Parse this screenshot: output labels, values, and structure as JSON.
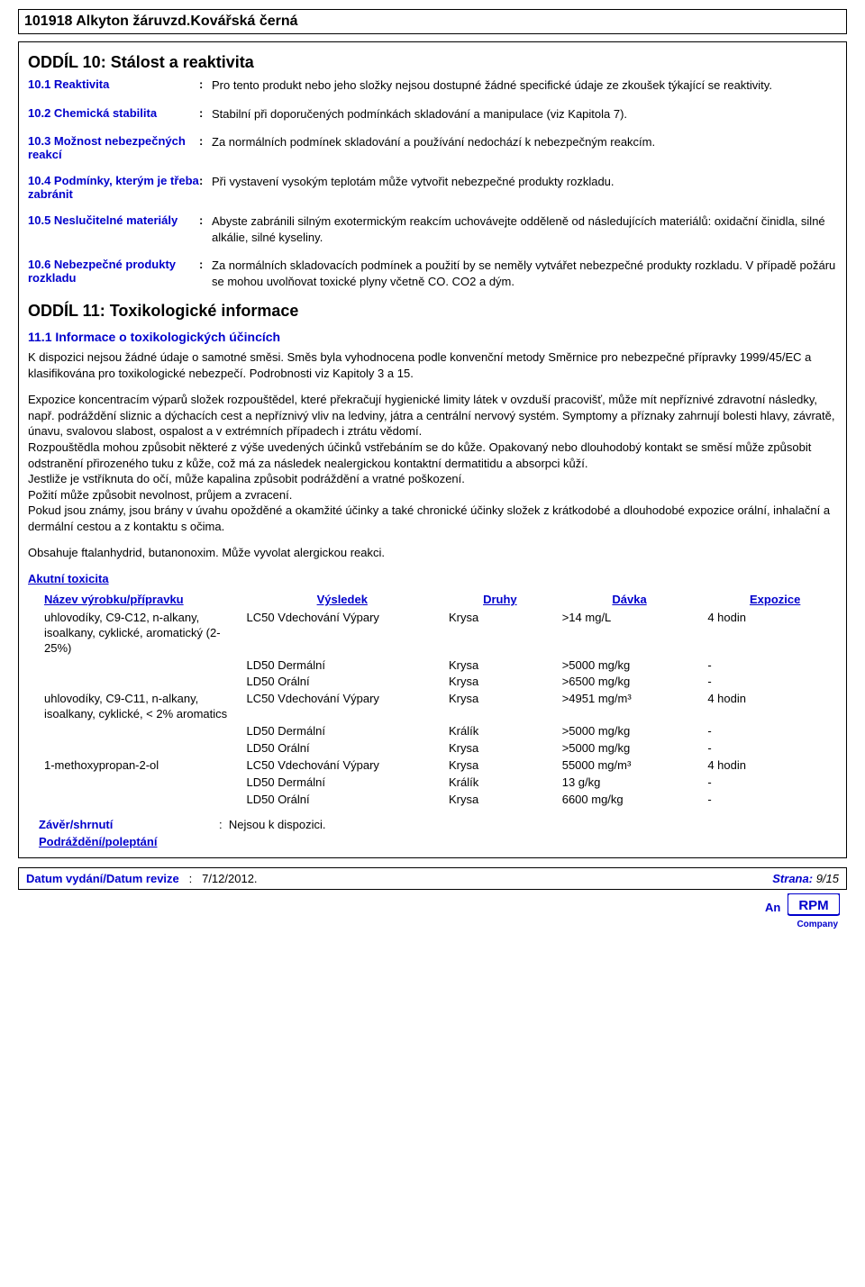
{
  "colors": {
    "blue": "#0000cc",
    "black": "#000000",
    "white": "#ffffff"
  },
  "header": {
    "title": "101918 Alkyton žáruvzd.Kovářská černá"
  },
  "section10": {
    "heading": "ODDÍL 10: Stálost a reaktivita",
    "items": [
      {
        "label": "10.1 Reaktivita",
        "value": "Pro tento produkt nebo jeho složky nejsou dostupné žádné specifické údaje ze zkoušek týkající se reaktivity."
      },
      {
        "label": "10.2 Chemická stabilita",
        "value": "Stabilní při doporučených podmínkách skladování a manipulace (viz Kapitola 7)."
      },
      {
        "label": "10.3 Možnost nebezpečných reakcí",
        "value": "Za normálních podmínek skladování a používání nedochází k nebezpečným reakcím."
      },
      {
        "label": "10.4 Podmínky, kterým je třeba zabránit",
        "value": "Při vystavení vysokým teplotám může vytvořit nebezpečné produkty rozkladu."
      },
      {
        "label": "10.5 Neslučitelné materiály",
        "value": "Abyste zabránili silným exotermickým reakcím uchovávejte odděleně od následujících materiálů: oxidační činidla, silné alkálie, silné kyseliny."
      },
      {
        "label": "10.6 Nebezpečné produkty rozkladu",
        "value": "Za normálních skladovacích podmínek a použití by se neměly vytvářet nebezpečné produkty rozkladu. V případě požáru se mohou uvolňovat toxické plyny včetně CO. CO2 a dým."
      }
    ]
  },
  "section11": {
    "heading": "ODDÍL 11: Toxikologické informace",
    "sub1": "11.1 Informace o toxikologických účincích",
    "para1": "K dispozici nejsou žádné údaje o samotné směsi. Směs byla vyhodnocena podle konvenční metody Směrnice pro nebezpečné přípravky 1999/45/EC a klasifikována pro toxikologické nebezpečí. Podrobnosti viz Kapitoly 3 a 15.",
    "para2": "Expozice koncentracím výparů složek rozpouštědel, které překračují hygienické limity látek v ovzduší pracovišť, může mít nepříznivé zdravotní následky, např. podráždění sliznic a dýchacích cest a nepříznivý vliv na ledviny, játra a centrální nervový systém. Symptomy a příznaky zahrnují bolesti hlavy, závratě, únavu, svalovou slabost, ospalost a v extrémních případech i ztrátu vědomí.\nRozpouštědla mohou způsobit některé z výše uvedených účinků vstřebáním se do kůže. Opakovaný nebo dlouhodobý kontakt se směsí může způsobit odstranění přirozeného tuku z kůže, což má za následek nealergickou kontaktní dermatitidu a absorpci kůží.\nJestliže je vstříknuta do očí, může kapalina způsobit podráždění a vratné poškození.\nPožití může způsobit nevolnost, průjem a zvracení.\nPokud jsou známy, jsou brány v úvahu opožděné a okamžité účinky a také chronické účinky složek z krátkodobé a dlouhodobé expozice orální, inhalační a dermální cestou a z kontaktu s očima.",
    "para3": "Obsahuje ftalanhydrid, butanonoxim. Může vyvolat alergickou reakci.",
    "acute_toxicity_label": "Akutní toxicita",
    "table_headers": [
      "Název výrobku/přípravku",
      "Výsledek",
      "Druhy",
      "Dávka",
      "Expozice"
    ],
    "table_rows": [
      {
        "name": "uhlovodíky, C9-C12, n-alkany, isoalkany, cyklické, aromatický (2-25%)",
        "result": "LC50 Vdechování Výpary",
        "species": "Krysa",
        "dose": ">14 mg/L",
        "exposure": "4 hodin"
      },
      {
        "name": "",
        "result": "LD50 Dermální",
        "species": "Krysa",
        "dose": ">5000 mg/kg",
        "exposure": "-"
      },
      {
        "name": "",
        "result": "LD50 Orální",
        "species": "Krysa",
        "dose": ">6500 mg/kg",
        "exposure": "-"
      },
      {
        "name": "uhlovodíky, C9-C11, n-alkany, isoalkany, cyklické, < 2% aromatics",
        "result": "LC50 Vdechování Výpary",
        "species": "Krysa",
        "dose": ">4951 mg/m³",
        "exposure": "4 hodin"
      },
      {
        "name": "",
        "result": "LD50 Dermální",
        "species": "Králík",
        "dose": ">5000 mg/kg",
        "exposure": "-"
      },
      {
        "name": "",
        "result": "LD50 Orální",
        "species": "Krysa",
        "dose": ">5000 mg/kg",
        "exposure": "-"
      },
      {
        "name": "1-methoxypropan-2-ol",
        "result": "LC50 Vdechování Výpary",
        "species": "Krysa",
        "dose": "55000 mg/m³",
        "exposure": "4 hodin"
      },
      {
        "name": "",
        "result": "LD50 Dermální",
        "species": "Králík",
        "dose": "13 g/kg",
        "exposure": "-"
      },
      {
        "name": "",
        "result": "LD50 Orální",
        "species": "Krysa",
        "dose": "6600 mg/kg",
        "exposure": "-"
      }
    ],
    "conclusion_label": "Závěr/shrnutí",
    "conclusion_value": "Nejsou k dispozici.",
    "irritation_label": "Podráždění/poleptání"
  },
  "footer": {
    "left_label": "Datum vydání/Datum revize",
    "left_value": "7/12/2012.",
    "right_label": "Strana:",
    "right_value": "9/15",
    "an": "An",
    "company": "Company"
  }
}
